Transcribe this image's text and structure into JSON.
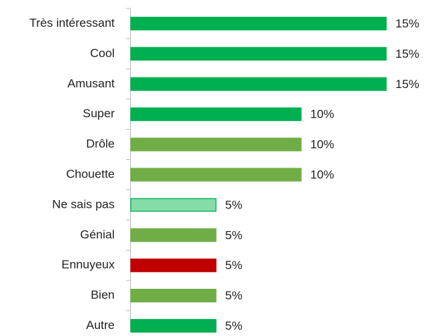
{
  "chart_data": {
    "type": "barh",
    "categories": [
      "Très intéressant",
      "Cool",
      "Amusant",
      "Super",
      "Drôle",
      "Chouette",
      "Ne sais pas",
      "Génial",
      "Ennuyeux",
      "Bien",
      "Autre"
    ],
    "values": [
      15,
      15,
      15,
      10,
      10,
      10,
      5,
      5,
      5,
      5,
      5
    ],
    "value_labels": [
      "15%",
      "15%",
      "15%",
      "10%",
      "10%",
      "10%",
      "5%",
      "5%",
      "5%",
      "5%",
      "5%"
    ],
    "colors": [
      "#00b050",
      "#00b050",
      "#00b050",
      "#00b050",
      "#70ad47",
      "#70ad47",
      "#86dca8",
      "#70ad47",
      "#c00000",
      "#70ad47",
      "#00b050"
    ],
    "edge_colors": [
      "#00b050",
      "#00b050",
      "#00b050",
      "#00b050",
      "#70ad47",
      "#70ad47",
      "#00b050",
      "#70ad47",
      "#c00000",
      "#70ad47",
      "#00b050"
    ]
  }
}
